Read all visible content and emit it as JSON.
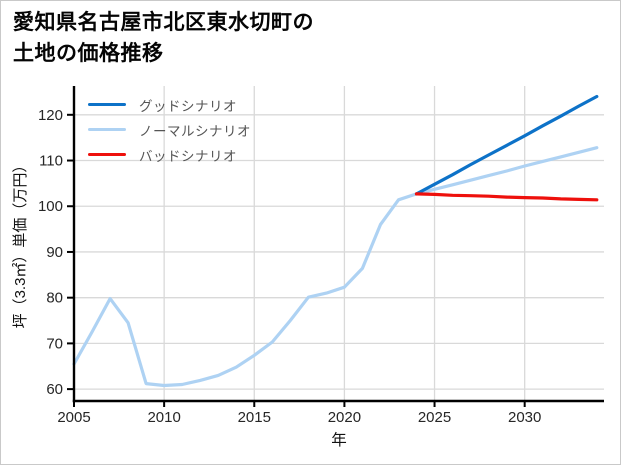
{
  "title": {
    "line1": "愛知県名古屋市北区東水切町の",
    "line2": "土地の価格推移"
  },
  "chart_data": {
    "type": "line",
    "title": "愛知県名古屋市北区東水切町の土地の価格推移",
    "xlabel": "年",
    "ylabel": "坪（3.3㎡）単価（万円）",
    "x_ticks": [
      2005,
      2010,
      2015,
      2020,
      2025,
      2030
    ],
    "y_ticks": [
      60,
      70,
      80,
      90,
      100,
      110,
      120
    ],
    "x_range": [
      2005,
      2034.4
    ],
    "y_range": [
      57.4,
      126.3
    ],
    "grid": true,
    "grid_color": "#d9d9d9",
    "axis_color": "#000000",
    "tick_label_color": "#262626",
    "legend_position": "upper-left",
    "series": [
      {
        "name": "グッドシナリオ",
        "color": "#0d72c8",
        "x": [
          2024,
          2025,
          2026,
          2027,
          2028,
          2029,
          2030,
          2031,
          2032,
          2033,
          2034
        ],
        "y": [
          102.7,
          104.8,
          106.9,
          109.1,
          111.2,
          113.3,
          115.4,
          117.6,
          119.7,
          121.9,
          124.0
        ]
      },
      {
        "name": "ノーマルシナリオ",
        "color": "#aed2f3",
        "x": [
          2005,
          2006,
          2007,
          2008,
          2009,
          2010,
          2011,
          2012,
          2013,
          2014,
          2015,
          2016,
          2017,
          2018,
          2019,
          2020,
          2021,
          2022,
          2023,
          2024,
          2025,
          2026,
          2027,
          2028,
          2029,
          2030,
          2031,
          2032,
          2033,
          2034
        ],
        "y": [
          65.5,
          72.5,
          79.8,
          74.5,
          61.2,
          60.8,
          61.0,
          61.9,
          63.0,
          64.8,
          67.4,
          70.3,
          75.0,
          80.1,
          81.0,
          82.3,
          86.4,
          96.0,
          101.4,
          102.7,
          103.7,
          104.7,
          105.7,
          106.7,
          107.7,
          108.8,
          109.8,
          110.8,
          111.8,
          112.8
        ]
      },
      {
        "name": "バッドシナリオ",
        "color": "#ee100c",
        "x": [
          2024,
          2025,
          2026,
          2027,
          2028,
          2029,
          2030,
          2031,
          2032,
          2033,
          2034
        ],
        "y": [
          102.7,
          102.6,
          102.4,
          102.3,
          102.2,
          102.0,
          101.9,
          101.8,
          101.6,
          101.5,
          101.4
        ]
      }
    ]
  }
}
